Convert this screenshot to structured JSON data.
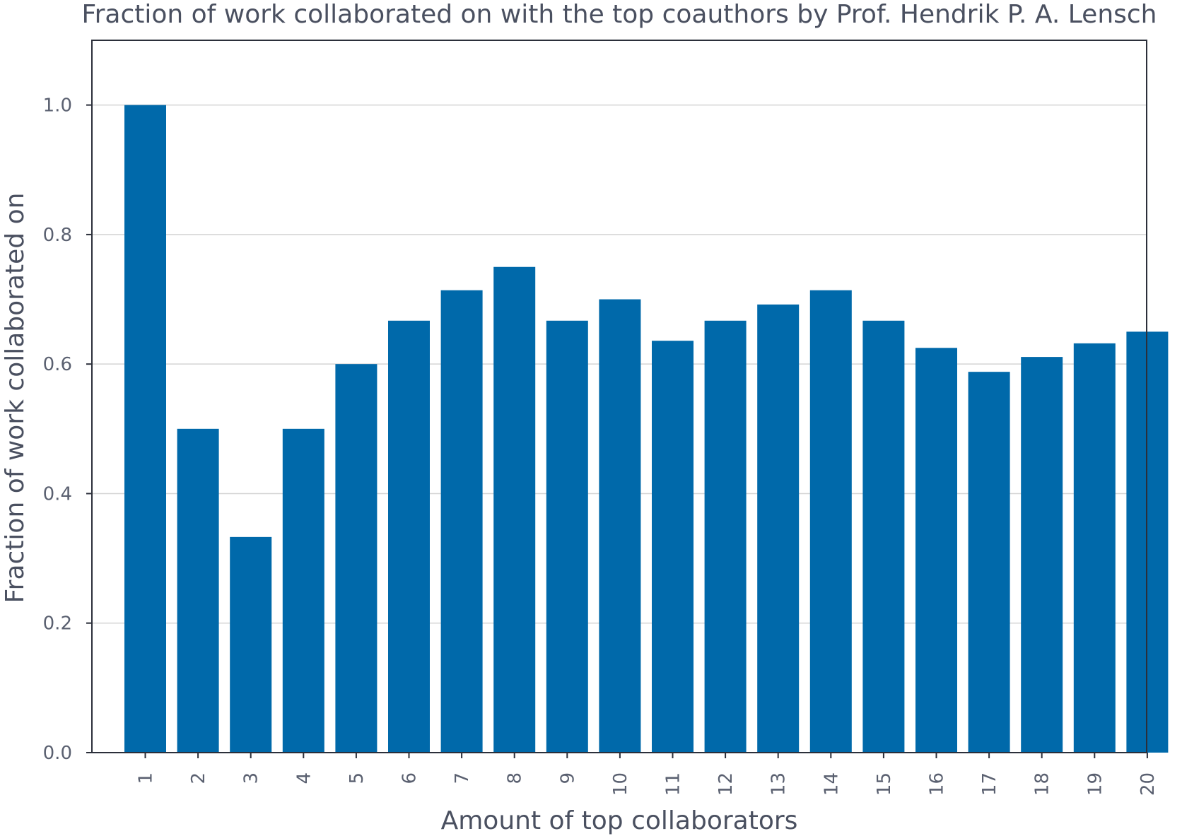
{
  "chart_data": {
    "type": "bar",
    "title": "Fraction of work collaborated on with the top coauthors by Prof. Hendrik P. A. Lensch",
    "xlabel": "Amount of top collaborators",
    "ylabel": "Fraction of work collaborated on",
    "categories": [
      "1",
      "2",
      "3",
      "4",
      "5",
      "6",
      "7",
      "8",
      "9",
      "10",
      "11",
      "12",
      "13",
      "14",
      "15",
      "16",
      "17",
      "18",
      "19",
      "20"
    ],
    "values": [
      1.0,
      0.5,
      0.333,
      0.5,
      0.6,
      0.667,
      0.714,
      0.75,
      0.667,
      0.7,
      0.636,
      0.667,
      0.692,
      0.714,
      0.667,
      0.625,
      0.588,
      0.611,
      0.632,
      0.65
    ],
    "ylim": [
      0,
      1.1
    ],
    "yticks": [
      "0.0",
      "0.2",
      "0.4",
      "0.6",
      "0.8",
      "1.0"
    ],
    "grid": "horizontal",
    "bar_color": "#0069aa"
  }
}
